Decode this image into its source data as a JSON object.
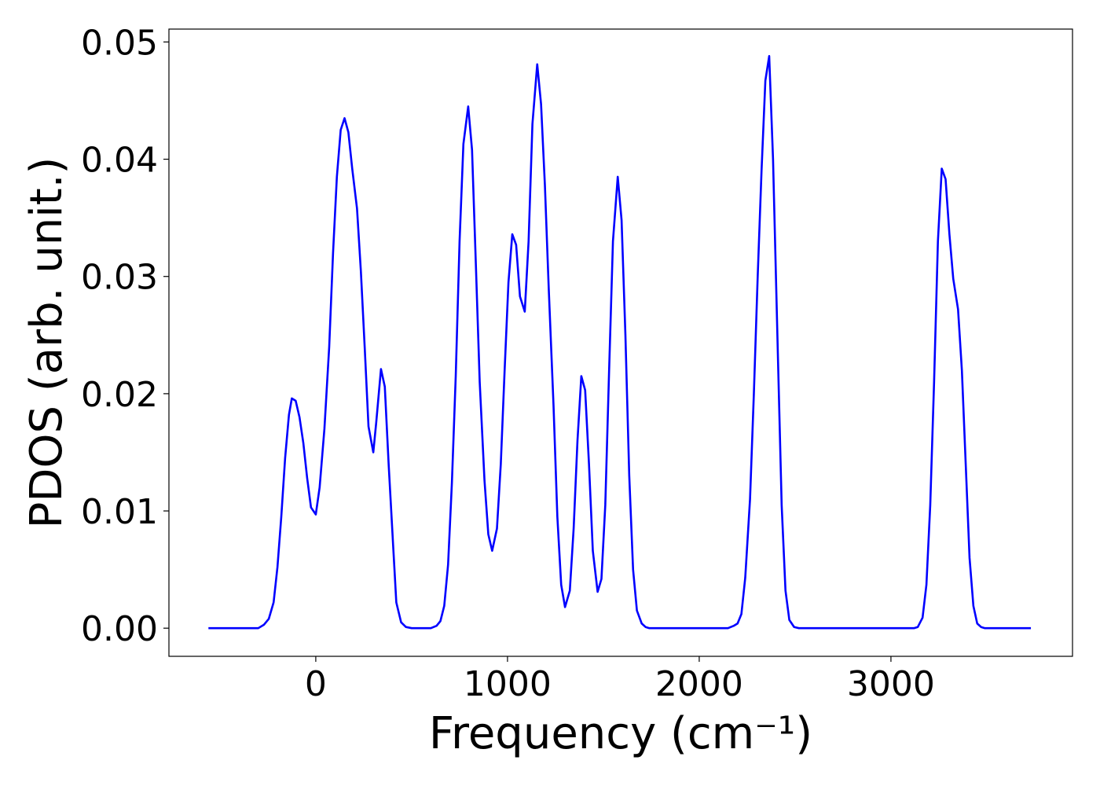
{
  "chart_data": {
    "type": "line",
    "xlabel": "Frequency (cm⁻¹)",
    "ylabel": "PDOS (arb. unit.)",
    "color": "#0000ff",
    "xlim": [
      -766,
      3947
    ],
    "ylim": [
      -0.0024,
      0.0511
    ],
    "xticks": [
      0,
      1000,
      2000,
      3000
    ],
    "yticks": [
      {
        "value": 0,
        "label": "0.00"
      },
      0.01,
      0.02,
      0.03,
      0.04,
      0.05
    ],
    "grid": false,
    "x": [
      -560,
      -300,
      -270,
      -245,
      -220,
      -200,
      -180,
      -160,
      -140,
      -125,
      -105,
      -85,
      -65,
      -45,
      -25,
      0,
      20,
      45,
      70,
      90,
      110,
      130,
      150,
      170,
      190,
      215,
      235,
      255,
      275,
      300,
      315,
      340,
      360,
      380,
      405,
      420,
      445,
      470,
      500,
      600,
      630,
      650,
      670,
      690,
      710,
      730,
      750,
      770,
      795,
      815,
      835,
      855,
      880,
      900,
      920,
      945,
      965,
      985,
      1005,
      1025,
      1045,
      1065,
      1090,
      1110,
      1130,
      1155,
      1175,
      1195,
      1215,
      1240,
      1260,
      1280,
      1300,
      1325,
      1345,
      1365,
      1385,
      1405,
      1425,
      1445,
      1470,
      1490,
      1510,
      1530,
      1550,
      1575,
      1595,
      1615,
      1635,
      1655,
      1675,
      1700,
      1720,
      1740,
      2150,
      2180,
      2200,
      2220,
      2240,
      2265,
      2285,
      2305,
      2325,
      2345,
      2365,
      2385,
      2410,
      2430,
      2450,
      2470,
      2495,
      2520,
      3120,
      3140,
      3165,
      3185,
      3205,
      3225,
      3245,
      3265,
      3285,
      3305,
      3325,
      3350,
      3370,
      3390,
      3410,
      3430,
      3450,
      3470,
      3490,
      3730
    ],
    "values": [
      0,
      0,
      0.0003,
      0.0008,
      0.0022,
      0.0052,
      0.0095,
      0.0145,
      0.0182,
      0.0196,
      0.0194,
      0.018,
      0.0158,
      0.0128,
      0.0103,
      0.0097,
      0.012,
      0.017,
      0.024,
      0.032,
      0.0385,
      0.0425,
      0.0435,
      0.0423,
      0.0392,
      0.0358,
      0.0305,
      0.024,
      0.0172,
      0.015,
      0.0175,
      0.0221,
      0.0206,
      0.014,
      0.0066,
      0.0022,
      0.0005,
      0.0001,
      0,
      0,
      0.0002,
      0.0006,
      0.0019,
      0.0054,
      0.0124,
      0.0215,
      0.033,
      0.0413,
      0.0445,
      0.0408,
      0.031,
      0.021,
      0.0126,
      0.008,
      0.0066,
      0.0085,
      0.014,
      0.022,
      0.0295,
      0.0336,
      0.0327,
      0.0283,
      0.027,
      0.033,
      0.043,
      0.0481,
      0.0447,
      0.0378,
      0.029,
      0.019,
      0.0095,
      0.0037,
      0.0018,
      0.0032,
      0.0085,
      0.016,
      0.0215,
      0.0203,
      0.014,
      0.0066,
      0.0031,
      0.0042,
      0.0105,
      0.022,
      0.033,
      0.0385,
      0.0348,
      0.025,
      0.013,
      0.005,
      0.0015,
      0.0004,
      0.0001,
      0,
      0,
      0.0002,
      0.0004,
      0.0012,
      0.0043,
      0.011,
      0.02,
      0.03,
      0.039,
      0.0467,
      0.0488,
      0.04,
      0.0235,
      0.0105,
      0.0032,
      0.0007,
      0.0001,
      0,
      0,
      0.0001,
      0.0009,
      0.0037,
      0.0105,
      0.021,
      0.033,
      0.0392,
      0.0383,
      0.0336,
      0.0298,
      0.0272,
      0.022,
      0.014,
      0.006,
      0.0019,
      0.0004,
      0.0001,
      0,
      0
    ]
  }
}
